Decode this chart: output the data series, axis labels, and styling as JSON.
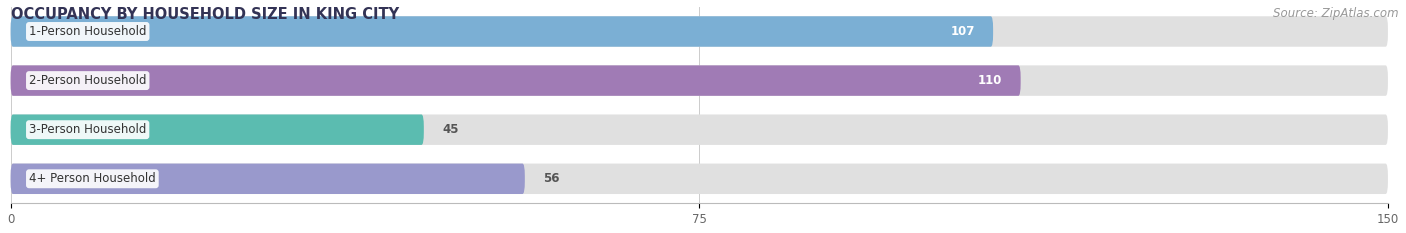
{
  "title": "OCCUPANCY BY HOUSEHOLD SIZE IN KING CITY",
  "source": "Source: ZipAtlas.com",
  "categories": [
    "1-Person Household",
    "2-Person Household",
    "3-Person Household",
    "4+ Person Household"
  ],
  "values": [
    107,
    110,
    45,
    56
  ],
  "bar_colors": [
    "#7bafd4",
    "#a07bb5",
    "#5bbcb0",
    "#9999cc"
  ],
  "label_colors": [
    "white",
    "white",
    "#555555",
    "#555555"
  ],
  "xlim": [
    0,
    150
  ],
  "xticks": [
    0,
    75,
    150
  ],
  "title_color": "#333355",
  "title_fontsize": 10.5,
  "source_fontsize": 8.5,
  "source_color": "#999999",
  "bar_label_fontsize": 8.5,
  "category_fontsize": 8.5,
  "background_color": "#f0f0f0",
  "bar_background_color": "#e0e0e0"
}
